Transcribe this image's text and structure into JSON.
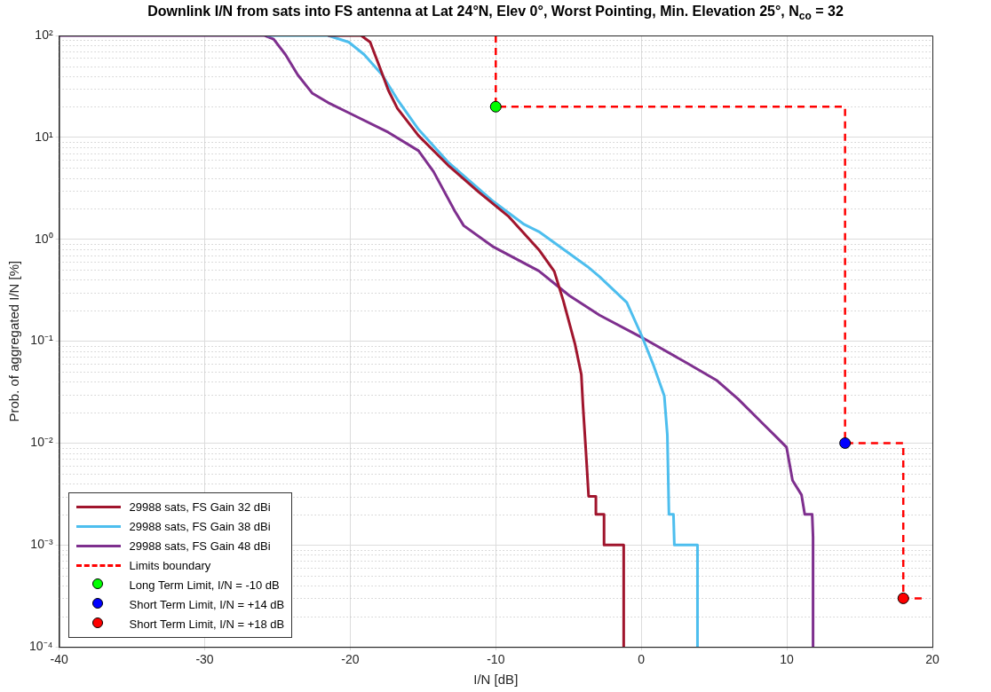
{
  "chart_data": {
    "type": "line",
    "title": "Downlink I/N from sats into FS antenna at Lat 24°N, Elev 0°, Worst Pointing, Min. Elevation 25°, N$_{co}$ = 32",
    "xlabel": "I/N [dB]",
    "ylabel": "Prob. of aggregated I/N [%]",
    "xlim": [
      -40,
      20
    ],
    "xticks": [
      -40,
      -30,
      -20,
      -10,
      0,
      10,
      20
    ],
    "ylim": [
      0.0001,
      100
    ],
    "yticks": [
      {
        "value": 0.0001,
        "label": "10⁻⁴"
      },
      {
        "value": 0.001,
        "label": "10⁻³"
      },
      {
        "value": 0.01,
        "label": "10⁻²"
      },
      {
        "value": 0.1,
        "label": "10⁻¹"
      },
      {
        "value": 1,
        "label": "10⁰"
      },
      {
        "value": 10,
        "label": "10¹"
      },
      {
        "value": 100,
        "label": "10²"
      }
    ],
    "log": "y",
    "grid": true,
    "legend": "bottom left",
    "series": [
      {
        "name": "29988 sats, FS Gain 32 dBi",
        "color": "#a0152d",
        "x": [
          -21.53,
          -19.25,
          -18.63,
          -18.0,
          -17.38,
          -16.76,
          -15.31,
          -13.26,
          -11.16,
          -9.09,
          -7.04,
          -5.98,
          -5.36,
          -4.55,
          -4.12,
          -4.01,
          -3.81,
          -3.62,
          -3.12,
          -3.12,
          -2.56,
          -2.56,
          -1.21,
          -1.21
        ],
        "values": [
          100,
          100,
          86,
          50,
          29,
          19.3,
          10.4,
          5.3,
          2.9,
          1.66,
          0.79,
          0.485,
          0.25,
          0.093,
          0.047,
          0.0237,
          0.0085,
          0.003,
          0.003,
          0.002,
          0.002,
          0.001,
          0.001,
          0.0001
        ]
      },
      {
        "name": "29988 sats, FS Gain 38 dBi",
        "color": "#4dbeee",
        "x": [
          -25.7,
          -21.53,
          -20.1,
          -19.04,
          -17.8,
          -16.76,
          -15.31,
          -13.26,
          -10.15,
          -8.05,
          -7.04,
          -3.7,
          -2.87,
          -1.0,
          0.03,
          0.86,
          1.58,
          1.79,
          1.9,
          2.21,
          2.27,
          3.86,
          3.86
        ],
        "values": [
          100,
          100,
          86,
          65,
          41,
          23.6,
          12,
          5.7,
          2.34,
          1.4,
          1.19,
          0.54,
          0.43,
          0.24,
          0.113,
          0.057,
          0.029,
          0.012,
          0.002,
          0.002,
          0.001,
          0.001,
          0.0001
        ]
      },
      {
        "name": "29988 sats, FS Gain 48 dBi",
        "color": "#7e2f8e",
        "x": [
          -40,
          -25.88,
          -25.26,
          -24.45,
          -23.6,
          -22.59,
          -21.53,
          -19.87,
          -17.38,
          -15.31,
          -14.27,
          -12.82,
          -12.2,
          -10.15,
          -7.04,
          -4.94,
          -2.87,
          0.03,
          3.14,
          5.21,
          6.66,
          8.32,
          9.36,
          9.98,
          10.39,
          11.01,
          11.23,
          11.74,
          11.8,
          11.8
        ],
        "values": [
          100,
          100,
          92,
          65,
          41,
          27,
          22,
          16.8,
          11.2,
          7.4,
          4.6,
          1.9,
          1.36,
          0.84,
          0.49,
          0.28,
          0.18,
          0.109,
          0.061,
          0.041,
          0.027,
          0.0157,
          0.0112,
          0.0091,
          0.0043,
          0.0031,
          0.002,
          0.002,
          0.0012,
          0.0001
        ]
      },
      {
        "name": "Limits boundary",
        "color": "#ff0000",
        "line_style": "dashed",
        "x": [
          -10,
          -10,
          14,
          14,
          18,
          18,
          19.5
        ],
        "values": [
          100,
          20,
          20,
          0.01,
          0.01,
          0.0003,
          0.0003
        ]
      },
      {
        "name": "Long Term Limit, I/N = -10 dB",
        "type": "scatter",
        "marker": "circle",
        "color": "#00ff00",
        "x": [
          -10
        ],
        "values": [
          20
        ]
      },
      {
        "name": "Short Term Limit, I/N = +14 dB",
        "type": "scatter",
        "marker": "circle",
        "color": "#0000ff",
        "x": [
          14
        ],
        "values": [
          0.01
        ]
      },
      {
        "name": "Short Term Limit, I/N = +18 dB",
        "type": "scatter",
        "marker": "circle",
        "color": "#ff0000",
        "x": [
          18
        ],
        "values": [
          0.0003
        ]
      }
    ]
  }
}
